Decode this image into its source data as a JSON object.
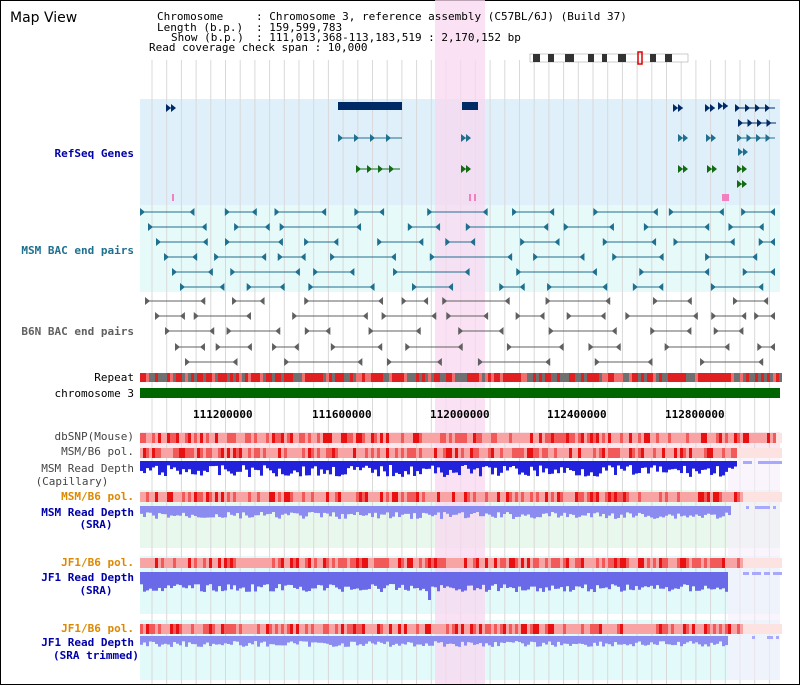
{
  "app": {
    "title": "Map View"
  },
  "info": {
    "chromosome_key": "Chromosome",
    "chromosome_val": ": Chromosome 3, reference assembly (C57BL/6J) (Build 37)",
    "length_key": "Length (b.p.)",
    "length_val": ": 159,599,783",
    "show_key": "Show (b.p.)",
    "show_val": ": 111,013,368-113,183,519 : 2,170,152 bp",
    "coverage_text": "Read coverage check span : 10,000"
  },
  "tracks": {
    "refseq": "RefSeq Genes",
    "msm_bac": "MSM BAC end pairs",
    "b6n_bac": "B6N BAC end pairs",
    "repeat": "Repeat",
    "chromosome": "chromosome 3",
    "dbsnp": "dbSNP(Mouse)",
    "msm_b6_pol_1": "MSM/B6 pol.",
    "msm_read_cap_1": "MSM Read Depth",
    "msm_read_cap_2": "(Capillary)",
    "msm_b6_pol_2": "MSM/B6 pol.",
    "msm_read_sra_1": "MSM Read Depth",
    "msm_read_sra_2": "(SRA)",
    "jf1_pol_1": "JF1/B6 pol.",
    "jf1_read_sra_1": "JF1 Read Depth",
    "jf1_read_sra_2": "(SRA)",
    "jf1_pol_2": "JF1/B6 pol.",
    "jf1_read_trim_1": "JF1 Read Depth",
    "jf1_read_trim_2": "(SRA trimmed)"
  },
  "axis": {
    "ticks": [
      "111200000",
      "111600000",
      "112000000",
      "112400000",
      "112800000"
    ]
  },
  "colors": {
    "refseq_bg": "#dff0fa",
    "msm_bac_bg": "#e6fafa",
    "highlight": "#f8d8f0",
    "gene_navy": "#002a66",
    "gene_green": "#136c13",
    "bac_teal": "#1f6f8f",
    "bac_gray": "#606060",
    "chrom_green": "#006600",
    "label_blue": "#0000aa",
    "label_orange": "#dd8800"
  }
}
